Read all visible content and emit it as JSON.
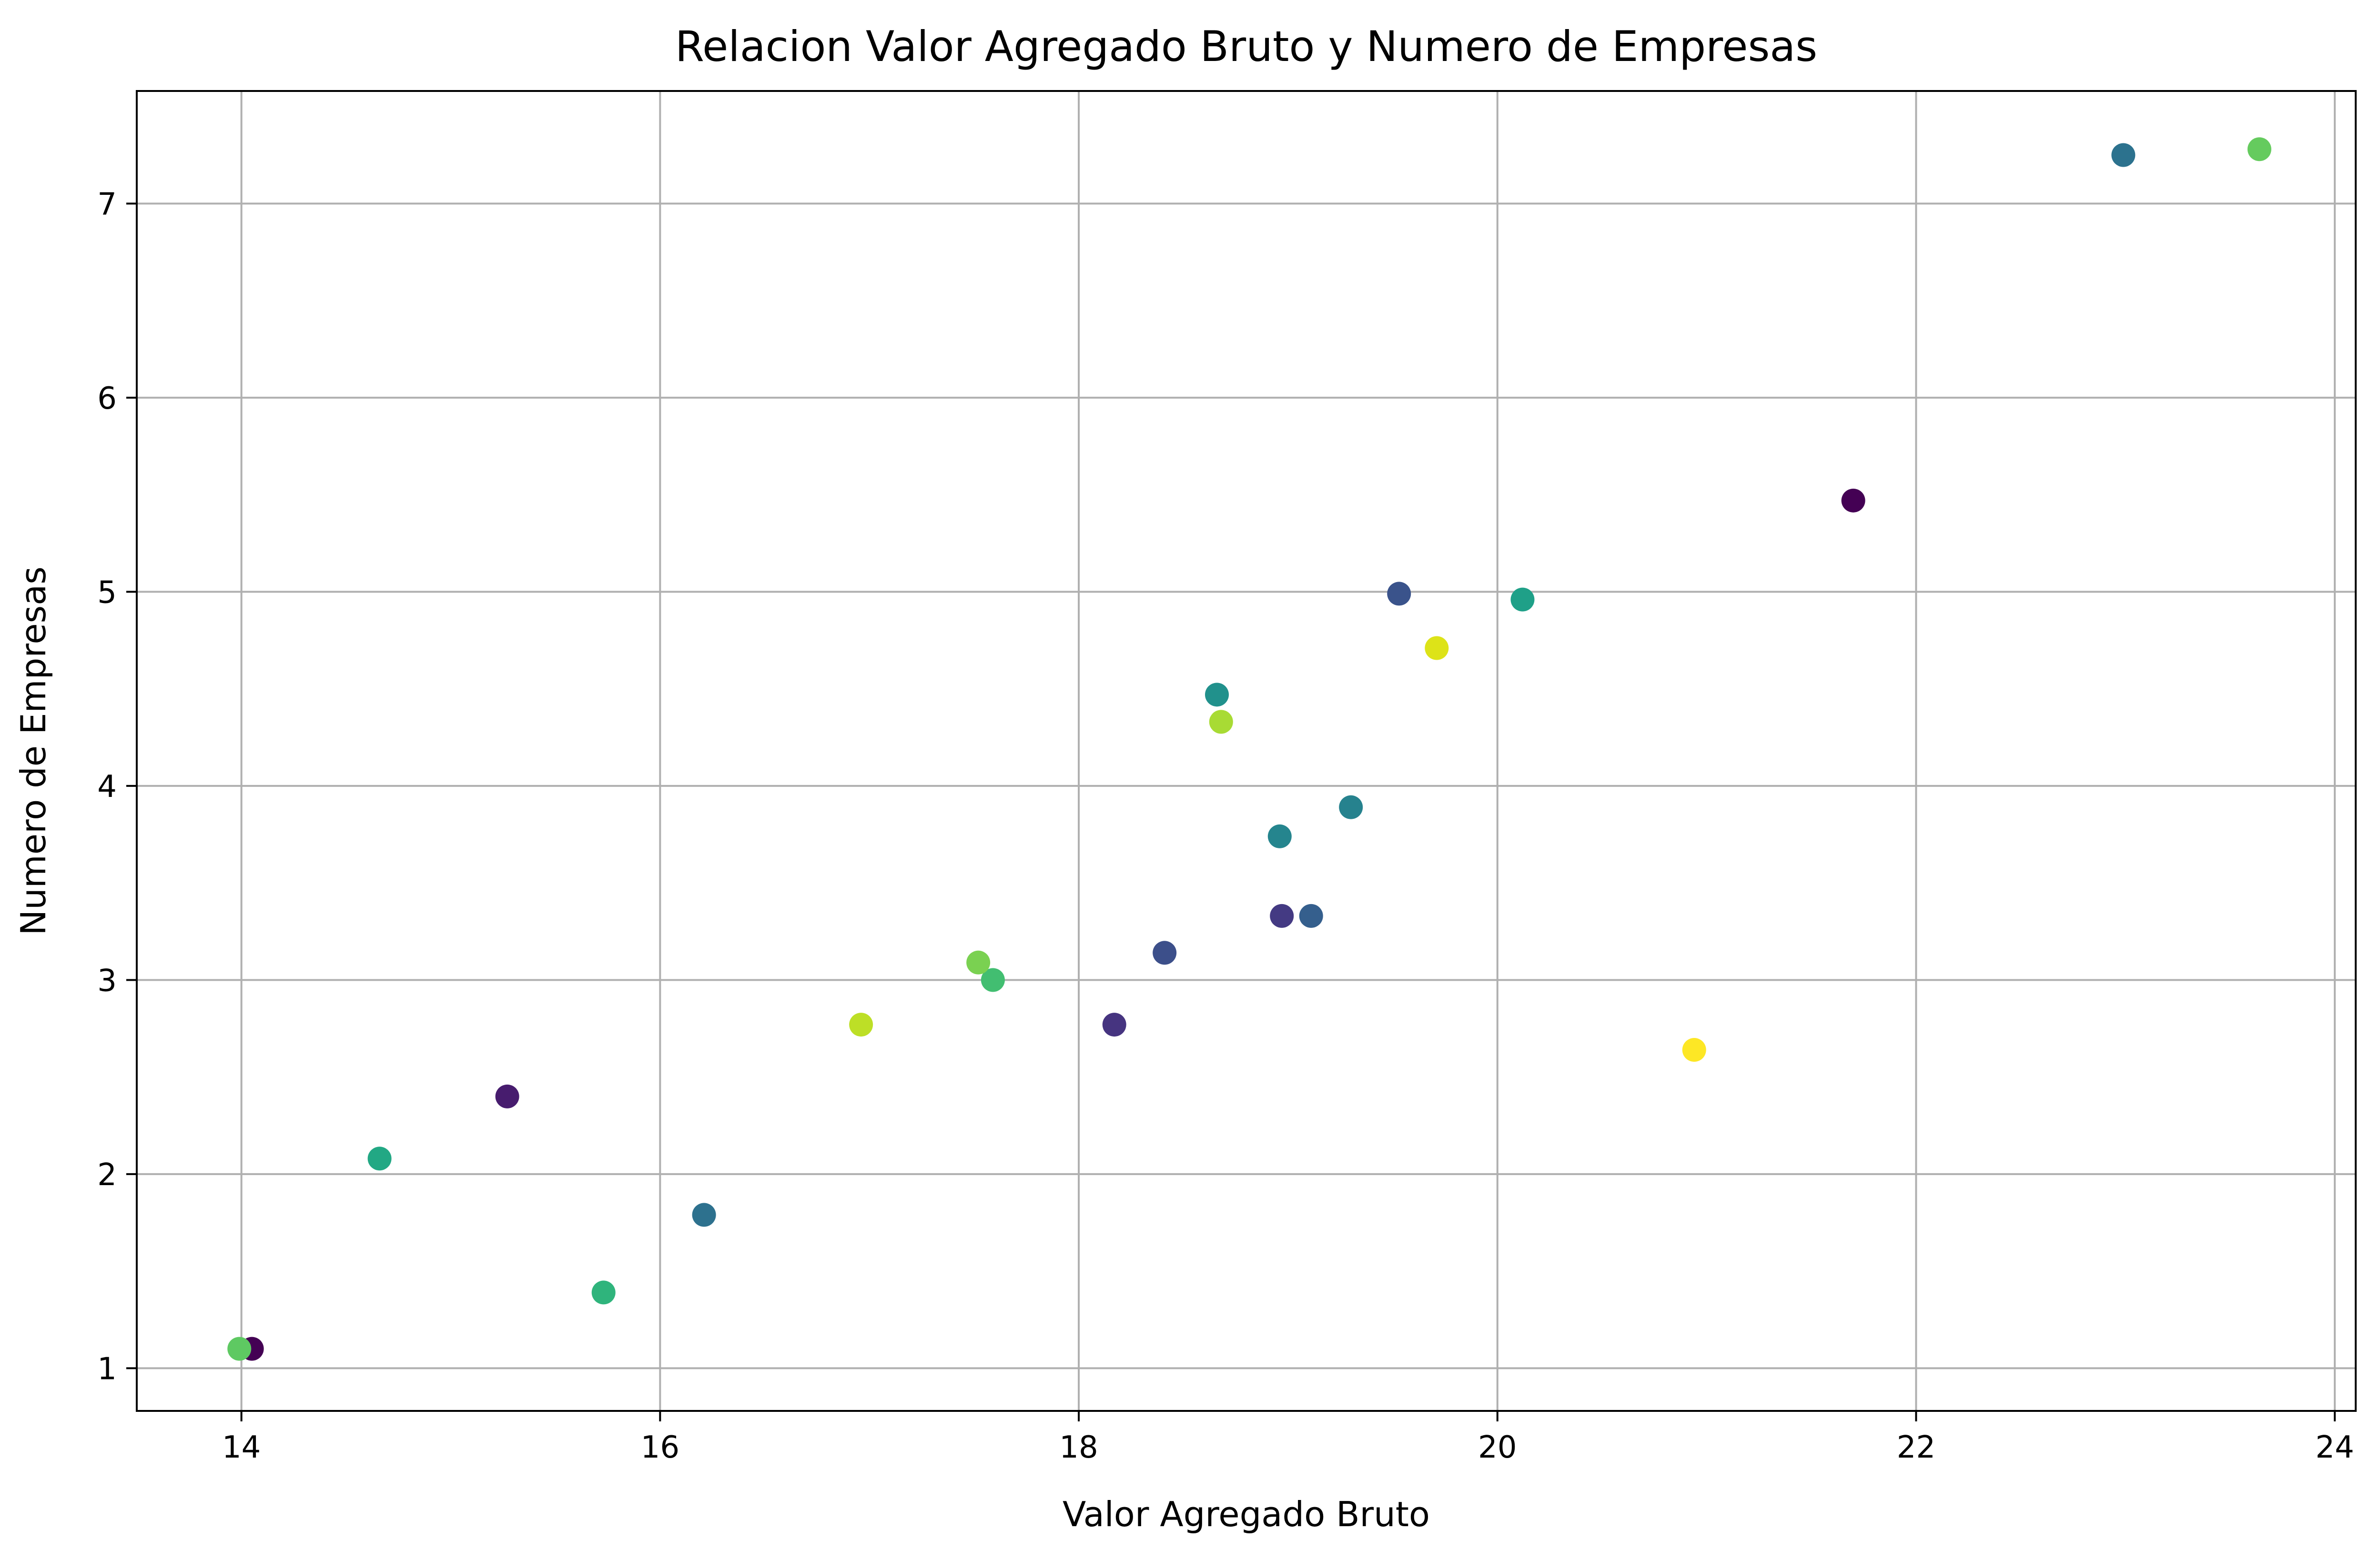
{
  "chart_data": {
    "type": "scatter",
    "title": "Relacion Valor Agregado Bruto y Numero de Empresas",
    "xlabel": "Valor Agregado Bruto",
    "ylabel": "Numero de Empresas",
    "xlim": [
      13.5,
      24.1
    ],
    "ylim": [
      0.78,
      7.58
    ],
    "x_ticks": [
      14,
      16,
      18,
      20,
      22,
      24
    ],
    "y_ticks": [
      1,
      2,
      3,
      4,
      5,
      6,
      7
    ],
    "grid": true,
    "colormap": "viridis",
    "points": [
      {
        "x": 14.05,
        "y": 1.1,
        "color": "#440154"
      },
      {
        "x": 21.7,
        "y": 5.47,
        "color": "#440154"
      },
      {
        "x": 15.27,
        "y": 2.4,
        "color": "#471c6e"
      },
      {
        "x": 18.97,
        "y": 3.33,
        "color": "#443a83"
      },
      {
        "x": 18.17,
        "y": 2.77,
        "color": "#463480"
      },
      {
        "x": 18.41,
        "y": 3.14,
        "color": "#3c4f8a"
      },
      {
        "x": 19.53,
        "y": 4.99,
        "color": "#3a538b"
      },
      {
        "x": 19.11,
        "y": 3.33,
        "color": "#355f8d"
      },
      {
        "x": 16.21,
        "y": 1.79,
        "color": "#2d718e"
      },
      {
        "x": 22.99,
        "y": 7.25,
        "color": "#2c728e"
      },
      {
        "x": 19.3,
        "y": 3.89,
        "color": "#26828e"
      },
      {
        "x": 18.96,
        "y": 3.74,
        "color": "#25858e"
      },
      {
        "x": 18.66,
        "y": 4.47,
        "color": "#21918c"
      },
      {
        "x": 20.12,
        "y": 4.96,
        "color": "#1fa088"
      },
      {
        "x": 14.66,
        "y": 2.08,
        "color": "#22a884"
      },
      {
        "x": 15.73,
        "y": 1.39,
        "color": "#2fb47c"
      },
      {
        "x": 17.59,
        "y": 3.0,
        "color": "#42be71"
      },
      {
        "x": 13.99,
        "y": 1.1,
        "color": "#5ec962"
      },
      {
        "x": 23.64,
        "y": 7.28,
        "color": "#65cb5e"
      },
      {
        "x": 17.52,
        "y": 3.09,
        "color": "#7ad151"
      },
      {
        "x": 18.68,
        "y": 4.33,
        "color": "#a8db34"
      },
      {
        "x": 16.96,
        "y": 2.77,
        "color": "#bddf26"
      },
      {
        "x": 19.71,
        "y": 4.71,
        "color": "#dde318"
      },
      {
        "x": 20.94,
        "y": 2.64,
        "color": "#fde725"
      }
    ]
  }
}
